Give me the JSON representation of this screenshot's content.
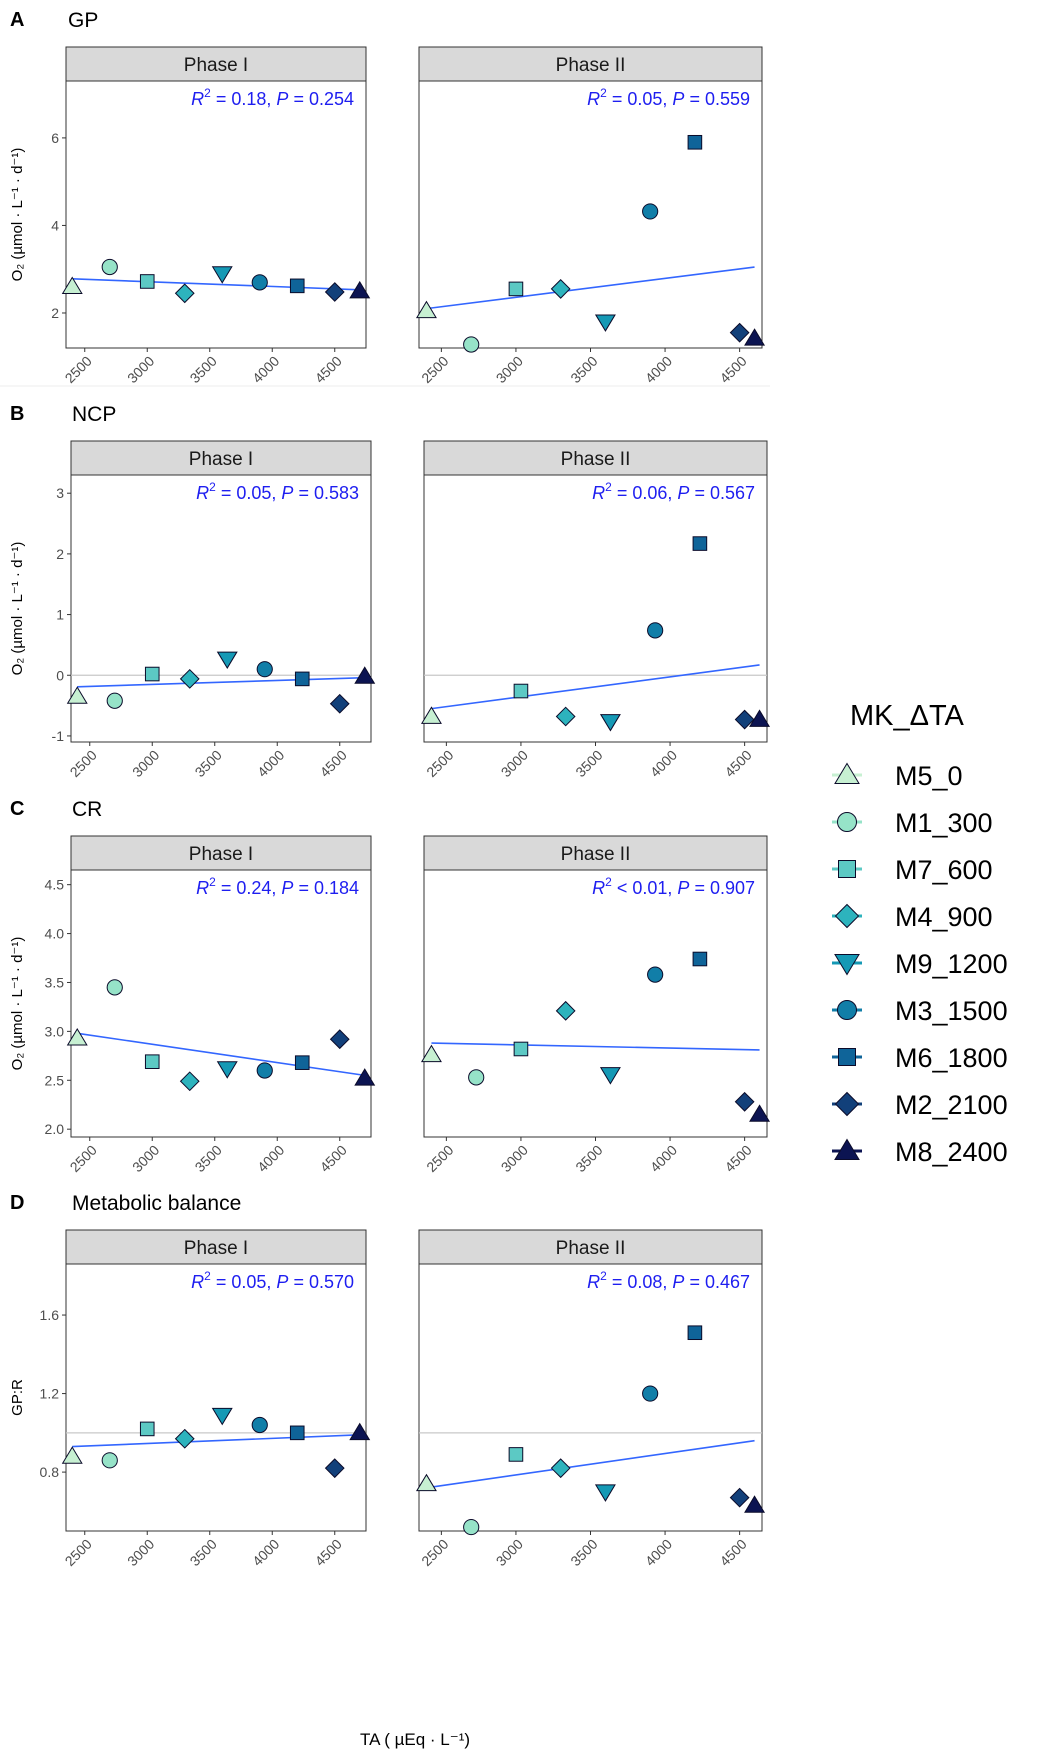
{
  "figure": {
    "xlabel": "TA ( µEq · L⁻¹)",
    "colors": {
      "regression": "#3366ff",
      "stat_text": "#1e1ef0",
      "strip_bg": "#d9d9d9",
      "hline": "#c8c8c8"
    }
  },
  "legend": {
    "title": "MK_ΔTA",
    "items": [
      {
        "label": "M5_0",
        "shape": "triangle-up",
        "color": "#c7f0d2"
      },
      {
        "label": "M1_300",
        "shape": "circle",
        "color": "#96e3c8"
      },
      {
        "label": "M7_600",
        "shape": "square",
        "color": "#5cc9c4"
      },
      {
        "label": "M4_900",
        "shape": "diamond",
        "color": "#2db3bd"
      },
      {
        "label": "M9_1200",
        "shape": "triangle-down",
        "color": "#1599b5"
      },
      {
        "label": "M3_1500",
        "shape": "circle",
        "color": "#117ea8"
      },
      {
        "label": "M6_1800",
        "shape": "square",
        "color": "#0f6499"
      },
      {
        "label": "M2_2100",
        "shape": "diamond",
        "color": "#12407a"
      },
      {
        "label": "M8_2400",
        "shape": "triangle-up",
        "color": "#0c1452"
      }
    ]
  },
  "chart_data": [
    {
      "type": "scatter",
      "panel": "A",
      "title": "GP",
      "ylabel": "O₂ (µmol · L⁻¹ · d⁻¹)",
      "y_ticks": [
        2,
        4,
        6
      ],
      "ylim": [
        1.2,
        7.3
      ],
      "hline": null,
      "facets": [
        {
          "strip": "Phase I",
          "stat_r2": "= 0.18, ",
          "stat_p": "= 0.254",
          "xlim": [
            2350,
            4750
          ],
          "x_ticks": [
            2500,
            3000,
            3500,
            4000,
            4500
          ],
          "fit": {
            "x": [
              2400,
              4700
            ],
            "y": [
              2.78,
              2.53
            ]
          },
          "x": [
            2400,
            2700,
            3000,
            3300,
            3600,
            3900,
            4200,
            4500,
            4700
          ],
          "y": [
            2.6,
            3.05,
            2.72,
            2.45,
            2.9,
            2.7,
            2.62,
            2.48,
            2.5
          ]
        },
        {
          "strip": "Phase II",
          "stat_r2": "= 0.05, ",
          "stat_p": "= 0.559",
          "xlim": [
            2350,
            4650
          ],
          "x_ticks": [
            2500,
            3000,
            3500,
            4000,
            4500
          ],
          "fit": {
            "x": [
              2400,
              4600
            ],
            "y": [
              2.1,
              3.05
            ]
          },
          "x": [
            2400,
            2700,
            3000,
            3300,
            3600,
            3900,
            4200,
            4500,
            4600
          ],
          "y": [
            2.05,
            1.28,
            2.55,
            2.55,
            1.8,
            4.32,
            5.9,
            1.55,
            1.42
          ]
        }
      ]
    },
    {
      "type": "scatter",
      "panel": "B",
      "title": "NCP",
      "ylabel": "O₂ (µmol · L⁻¹ · d⁻¹)",
      "y_ticks": [
        -1,
        0,
        1,
        2,
        3
      ],
      "ylim": [
        -1.1,
        3.3
      ],
      "hline": 0,
      "facets": [
        {
          "strip": "Phase I",
          "stat_r2": "= 0.05, ",
          "stat_p": "= 0.583",
          "xlim": [
            2350,
            4750
          ],
          "x_ticks": [
            2500,
            3000,
            3500,
            4000,
            4500
          ],
          "fit": {
            "x": [
              2400,
              4700
            ],
            "y": [
              -0.19,
              -0.04
            ]
          },
          "x": [
            2400,
            2700,
            3000,
            3300,
            3600,
            3900,
            4200,
            4500,
            4700
          ],
          "y": [
            -0.35,
            -0.42,
            0.02,
            -0.06,
            0.27,
            0.1,
            -0.06,
            -0.47,
            -0.02
          ]
        },
        {
          "strip": "Phase II",
          "stat_r2": "= 0.06, ",
          "stat_p": "= 0.567",
          "xlim": [
            2350,
            4650
          ],
          "x_ticks": [
            2500,
            3000,
            3500,
            4000,
            4500
          ],
          "fit": {
            "x": [
              2400,
              4600
            ],
            "y": [
              -0.55,
              0.17
            ]
          },
          "x": [
            2400,
            2700,
            3000,
            3300,
            3600,
            3900,
            4200,
            4500,
            4600
          ],
          "y": [
            -0.68,
            null,
            -0.26,
            -0.68,
            -0.76,
            0.74,
            2.17,
            -0.73,
            -0.73
          ]
        }
      ]
    },
    {
      "type": "scatter",
      "panel": "C",
      "title": "CR",
      "ylabel": "O₂ (µmol · L⁻¹ · d⁻¹)",
      "y_ticks": [
        2.0,
        2.5,
        3.0,
        3.5,
        4.0,
        4.5
      ],
      "ylim": [
        1.92,
        4.65
      ],
      "hline": null,
      "facets": [
        {
          "strip": "Phase I",
          "stat_r2": "= 0.24, ",
          "stat_p": "= 0.184",
          "xlim": [
            2350,
            4750
          ],
          "x_ticks": [
            2500,
            3000,
            3500,
            4000,
            4500
          ],
          "fit": {
            "x": [
              2400,
              4700
            ],
            "y": [
              2.98,
              2.55
            ]
          },
          "x": [
            2400,
            2700,
            3000,
            3300,
            3600,
            3900,
            4200,
            4500,
            4700
          ],
          "y": [
            2.93,
            3.45,
            2.69,
            2.49,
            2.62,
            2.6,
            2.68,
            2.92,
            2.52
          ]
        },
        {
          "strip": "Phase II",
          "stat_r2": "< 0.01, ",
          "stat_p": "= 0.907",
          "xlim": [
            2350,
            4650
          ],
          "x_ticks": [
            2500,
            3000,
            3500,
            4000,
            4500
          ],
          "fit": {
            "x": [
              2400,
              4600
            ],
            "y": [
              2.88,
              2.81
            ]
          },
          "x": [
            2400,
            2700,
            3000,
            3300,
            3600,
            3900,
            4200,
            4500,
            4600
          ],
          "y": [
            2.76,
            2.53,
            2.82,
            3.21,
            2.56,
            3.58,
            3.74,
            2.28,
            2.15
          ]
        }
      ]
    },
    {
      "type": "scatter",
      "panel": "D",
      "title": "Metabolic balance",
      "ylabel": "GP:R",
      "y_ticks": [
        0.8,
        1.2,
        1.6
      ],
      "ylim": [
        0.5,
        1.86
      ],
      "hline": 1,
      "facets": [
        {
          "strip": "Phase I",
          "stat_r2": "= 0.05, ",
          "stat_p": "= 0.570",
          "xlim": [
            2350,
            4750
          ],
          "x_ticks": [
            2500,
            3000,
            3500,
            4000,
            4500
          ],
          "fit": {
            "x": [
              2400,
              4700
            ],
            "y": [
              0.93,
              0.99
            ]
          },
          "x": [
            2400,
            2700,
            3000,
            3300,
            3600,
            3900,
            4200,
            4500,
            4700
          ],
          "y": [
            0.88,
            0.86,
            1.02,
            0.97,
            1.09,
            1.04,
            1.0,
            0.82,
            1.0
          ]
        },
        {
          "strip": "Phase II",
          "stat_r2": "= 0.08, ",
          "stat_p": "= 0.467",
          "xlim": [
            2350,
            4650
          ],
          "x_ticks": [
            2500,
            3000,
            3500,
            4000,
            4500
          ],
          "fit": {
            "x": [
              2400,
              4600
            ],
            "y": [
              0.72,
              0.96
            ]
          },
          "x": [
            2400,
            2700,
            3000,
            3300,
            3600,
            3900,
            4200,
            4500,
            4600
          ],
          "y": [
            0.74,
            0.52,
            0.89,
            0.82,
            0.7,
            1.2,
            1.51,
            0.67,
            0.63
          ]
        }
      ]
    }
  ]
}
